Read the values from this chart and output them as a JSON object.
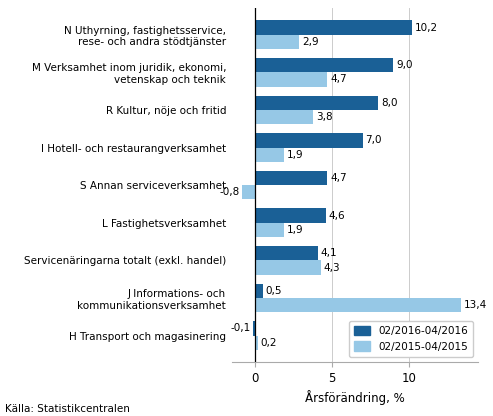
{
  "categories": [
    "H Transport och magasinering",
    "J Informations- och\nkommunikationsverksamhet",
    "Servicenäringarna totalt (exkl. handel)",
    "L Fastighetsverksamhet",
    "S Annan serviceverksamhet",
    "I Hotell- och restaurangverksamhet",
    "R Kultur, nöje och fritid",
    "M Verksamhet inom juridik, ekonomi,\nvetenskap och teknik",
    "N Uthyrning, fastighetsservice,\nrese- och andra stödtjänster"
  ],
  "values_2016": [
    -0.1,
    0.5,
    4.1,
    4.6,
    4.7,
    7.0,
    8.0,
    9.0,
    10.2
  ],
  "values_2015": [
    0.2,
    13.4,
    4.3,
    1.9,
    -0.8,
    1.9,
    3.8,
    4.7,
    2.9
  ],
  "color_2016": "#1A6096",
  "color_2015": "#96C8E6",
  "xlabel": "Årsförändring, %",
  "legend_2016": "02/2016-04/2016",
  "legend_2015": "02/2015-04/2015",
  "source": "Källa: Statistikcentralen",
  "xlim_left": -1.5,
  "xlim_right": 14.5,
  "xticks": [
    0,
    5,
    10
  ]
}
